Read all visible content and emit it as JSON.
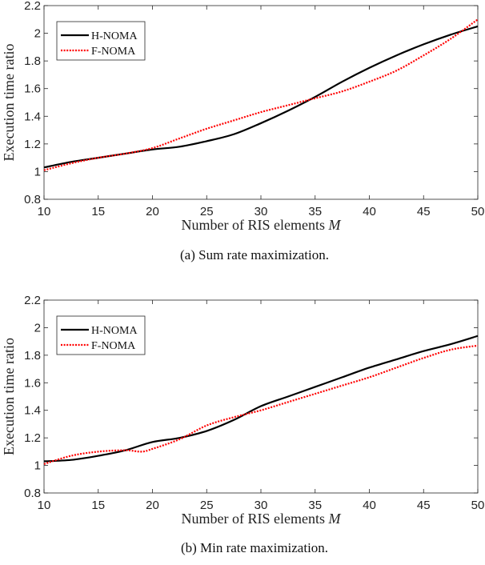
{
  "chart_data": [
    {
      "type": "line",
      "caption": "(a)  Sum rate maximization.",
      "xlabel": "Number of RIS elements ",
      "xlabel_italic": "M",
      "ylabel": "Execution time ratio",
      "xlim": [
        10,
        50
      ],
      "ylim": [
        0.8,
        2.2
      ],
      "xticks": [
        10,
        15,
        20,
        25,
        30,
        35,
        40,
        45,
        50
      ],
      "yticks": [
        0.8,
        1,
        1.2,
        1.4,
        1.6,
        1.8,
        2,
        2.2
      ],
      "ytick_labels": [
        "0.8",
        "1",
        "1.2",
        "1.4",
        "1.6",
        "1.8",
        "2",
        "2.2"
      ],
      "legend_placement": "top-left",
      "grid": false,
      "series": [
        {
          "name": "H-NOMA",
          "color": "#000000",
          "style": "solid",
          "x": [
            10,
            12.5,
            15,
            17.5,
            20,
            22.5,
            25,
            27.5,
            30,
            32.5,
            35,
            37.5,
            40,
            42.5,
            45,
            47.5,
            50
          ],
          "y": [
            1.03,
            1.07,
            1.1,
            1.13,
            1.16,
            1.18,
            1.22,
            1.27,
            1.35,
            1.44,
            1.54,
            1.65,
            1.75,
            1.84,
            1.92,
            1.99,
            2.05
          ]
        },
        {
          "name": "F-NOMA",
          "color": "#ff0000",
          "style": "dotted",
          "x": [
            10,
            12.5,
            15,
            17.5,
            20,
            22.5,
            25,
            27.5,
            30,
            32.5,
            35,
            37.5,
            40,
            42.5,
            45,
            47.5,
            50
          ],
          "y": [
            1.01,
            1.06,
            1.1,
            1.13,
            1.17,
            1.24,
            1.31,
            1.37,
            1.43,
            1.48,
            1.53,
            1.58,
            1.65,
            1.73,
            1.84,
            1.96,
            2.1
          ]
        }
      ]
    },
    {
      "type": "line",
      "caption": "(b)  Min rate maximization.",
      "xlabel": "Number of RIS elements ",
      "xlabel_italic": "M",
      "ylabel": "Execution time ratio",
      "xlim": [
        10,
        50
      ],
      "ylim": [
        0.8,
        2.2
      ],
      "xticks": [
        10,
        15,
        20,
        25,
        30,
        35,
        40,
        45,
        50
      ],
      "yticks": [
        0.8,
        1,
        1.2,
        1.4,
        1.6,
        1.8,
        2,
        2.2
      ],
      "ytick_labels": [
        "0.8",
        "1",
        "1.2",
        "1.4",
        "1.6",
        "1.8",
        "2",
        "2.2"
      ],
      "legend_placement": "top-left",
      "grid": false,
      "series": [
        {
          "name": "H-NOMA",
          "color": "#000000",
          "style": "solid",
          "x": [
            10,
            12.5,
            15,
            17.5,
            20,
            22.5,
            25,
            27.5,
            30,
            32.5,
            35,
            37.5,
            40,
            42.5,
            45,
            47.5,
            50
          ],
          "y": [
            1.03,
            1.04,
            1.07,
            1.11,
            1.17,
            1.2,
            1.25,
            1.33,
            1.43,
            1.5,
            1.57,
            1.64,
            1.71,
            1.77,
            1.83,
            1.88,
            1.94
          ]
        },
        {
          "name": "F-NOMA",
          "color": "#ff0000",
          "style": "dotted",
          "x": [
            10,
            12.5,
            15,
            17.5,
            19,
            20,
            22.5,
            25,
            27.5,
            30,
            32.5,
            35,
            37.5,
            40,
            42.5,
            45,
            47.5,
            50
          ],
          "y": [
            1.01,
            1.07,
            1.1,
            1.11,
            1.1,
            1.12,
            1.19,
            1.29,
            1.35,
            1.4,
            1.46,
            1.52,
            1.58,
            1.64,
            1.71,
            1.78,
            1.84,
            1.87
          ]
        }
      ]
    }
  ]
}
